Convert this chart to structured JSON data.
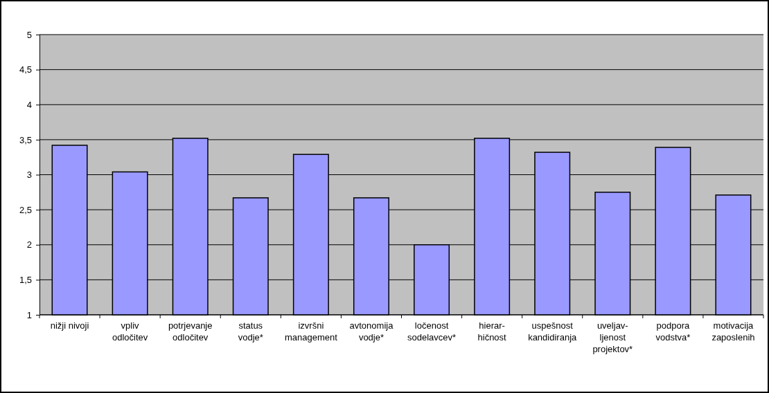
{
  "chart_data": {
    "type": "bar",
    "categories": [
      "nižji nivoji",
      "vpliv odločitev",
      "potrjevanje odločitev",
      "status vodje*",
      "izvršni management",
      "avtonomija vodje*",
      "ločenost sodelavcev*",
      "hierar-hičnost",
      "uspešnost kandidiranja",
      "uveljav-ljenost projektov*",
      "podpora vodstva*",
      "motivacija zaposlenih"
    ],
    "values": [
      3.42,
      3.04,
      3.52,
      2.67,
      3.29,
      2.67,
      2.0,
      3.52,
      3.32,
      2.75,
      3.39,
      2.71
    ],
    "color": "#9999ff",
    "ylim": [
      1,
      5
    ],
    "yticks": [
      1,
      {
        "value": 1.5,
        "label": "1,5"
      },
      2,
      {
        "value": 2.5,
        "label": "2,5"
      },
      3,
      {
        "value": 3.5,
        "label": "3,5"
      },
      4,
      {
        "value": 4.5,
        "label": "4,5"
      },
      5
    ],
    "grid": "y"
  }
}
